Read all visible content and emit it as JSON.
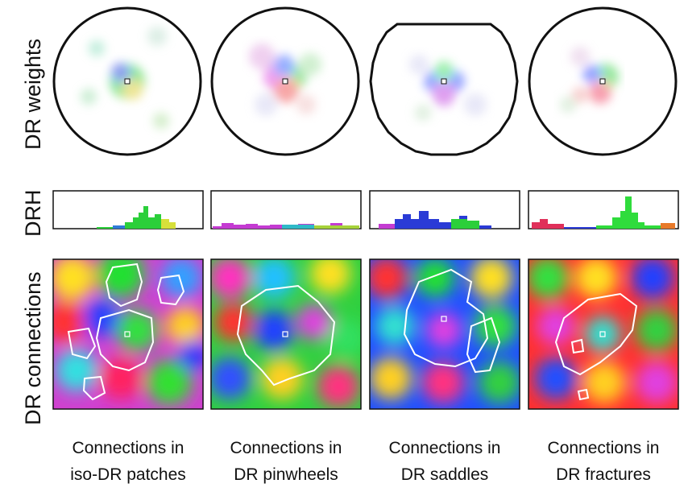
{
  "row_labels": {
    "weights": "DR weights",
    "drh": "DRH",
    "connections": "DR connections"
  },
  "columns": [
    {
      "caption_line1": "Connections in",
      "caption_line2": "iso-DR patches",
      "weights_shape": "circle"
    },
    {
      "caption_line1": "Connections in",
      "caption_line2": "DR pinwheels",
      "weights_shape": "circle"
    },
    {
      "caption_line1": "Connections in",
      "caption_line2": "DR saddles",
      "weights_shape": "clipped-circle"
    },
    {
      "caption_line1": "Connections in",
      "caption_line2": "DR fractures",
      "weights_shape": "circle"
    }
  ],
  "colors": {
    "outline": "#111111",
    "contour": "#ffffff",
    "iso_patch_peak": "#2bcf3a",
    "saddle_peak": "#2a3bd6",
    "fracture_peak": "#2fdc3c"
  }
}
